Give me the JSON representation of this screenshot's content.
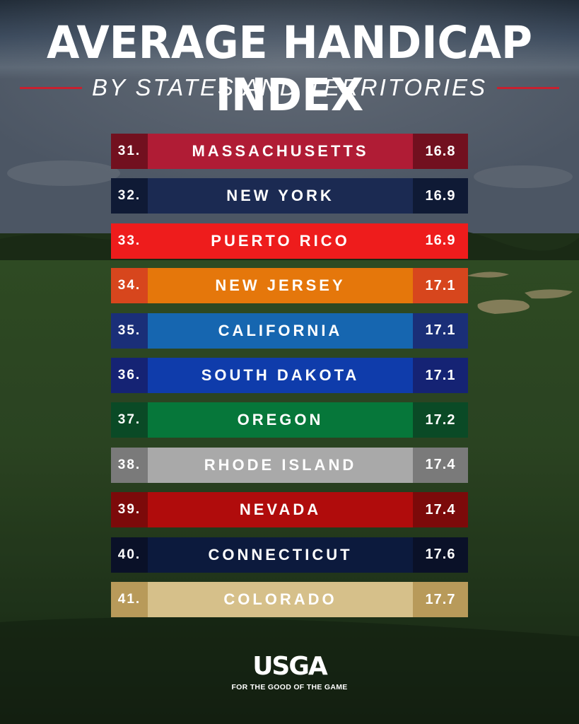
{
  "header": {
    "title": "AVERAGE HANDICAP INDEX",
    "subtitle": "BY STATES AND TERRITORIES"
  },
  "footer": {
    "logo": "USGA",
    "tagline": "FOR THE GOOD OF THE GAME"
  },
  "colors": {
    "title": "#ffffff",
    "accent_rule": "#c8202f"
  },
  "chart_data": {
    "type": "table",
    "title": "AVERAGE HANDICAP INDEX",
    "subtitle": "BY STATES AND TERRITORIES",
    "columns": [
      "rank",
      "state",
      "average_handicap_index"
    ],
    "rows": [
      {
        "rank": "31.",
        "state": "MASSACHUSETTS",
        "value": "16.8",
        "color_main": "#b01c35",
        "color_side": "#72101f"
      },
      {
        "rank": "32.",
        "state": "NEW YORK",
        "value": "16.9",
        "color_main": "#1b2a52",
        "color_side": "#0f1a35"
      },
      {
        "rank": "33.",
        "state": "PUERTO RICO",
        "value": "16.9",
        "color_main": "#ee1c1c",
        "color_side": "#ee1c1c"
      },
      {
        "rank": "34.",
        "state": "NEW JERSEY",
        "value": "17.1",
        "color_main": "#e5770b",
        "color_side": "#d7461d"
      },
      {
        "rank": "35.",
        "state": "CALIFORNIA",
        "value": "17.1",
        "color_main": "#1666b0",
        "color_side": "#1a2f78"
      },
      {
        "rank": "36.",
        "state": "SOUTH DAKOTA",
        "value": "17.1",
        "color_main": "#0f3cab",
        "color_side": "#152374"
      },
      {
        "rank": "37.",
        "state": "OREGON",
        "value": "17.2",
        "color_main": "#06773a",
        "color_side": "#0a4a26"
      },
      {
        "rank": "38.",
        "state": "RHODE ISLAND",
        "value": "17.4",
        "color_main": "#a9a9a9",
        "color_side": "#7a7a7a"
      },
      {
        "rank": "39.",
        "state": "NEVADA",
        "value": "17.4",
        "color_main": "#b00c0c",
        "color_side": "#7c0a0a"
      },
      {
        "rank": "40.",
        "state": "CONNECTICUT",
        "value": "17.6",
        "color_main": "#0c1a3d",
        "color_side": "#0a1128"
      },
      {
        "rank": "41.",
        "state": "COLORADO",
        "value": "17.7",
        "color_main": "#d6c08a",
        "color_side": "#b89a5a"
      }
    ]
  }
}
